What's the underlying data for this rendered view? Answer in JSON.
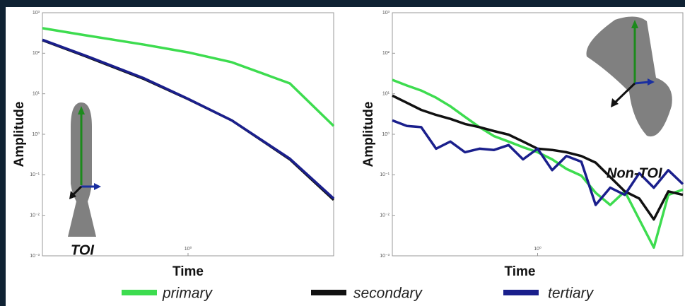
{
  "chart_data": [
    {
      "type": "line",
      "ylabel": "Amplitude",
      "xlabel": "Time",
      "annotation": "TOI",
      "log_x": true,
      "log_y": true,
      "x": [
        0.1,
        0.2,
        0.5,
        1,
        2,
        5,
        10
      ],
      "xlim": [
        0.1,
        10
      ],
      "xticks": [
        {
          "value": 1,
          "label": "10⁰"
        }
      ],
      "ylim": [
        0.001,
        1000
      ],
      "yticks": [
        {
          "value": 1000,
          "label": "10³"
        },
        {
          "value": 100,
          "label": "10²"
        },
        {
          "value": 10,
          "label": "10¹"
        },
        {
          "value": 1,
          "label": "10⁰"
        },
        {
          "value": 0.1,
          "label": "10⁻¹"
        },
        {
          "value": 0.01,
          "label": "10⁻²"
        },
        {
          "value": 0.001,
          "label": "10⁻³"
        }
      ],
      "series": [
        {
          "name": "primary",
          "color": "#3ddc4f",
          "values": [
            415,
            275,
            163,
            105,
            60,
            18,
            1.6
          ]
        },
        {
          "name": "secondary",
          "color": "#111111",
          "values": [
            210,
            83,
            23,
            7.4,
            2.2,
            0.24,
            0.024
          ]
        },
        {
          "name": "tertiary",
          "color": "#1a1f8c",
          "values": [
            215,
            86,
            24,
            7.5,
            2.2,
            0.25,
            0.026
          ]
        }
      ]
    },
    {
      "type": "line",
      "ylabel": "Amplitude",
      "xlabel": "Time",
      "annotation": "Non-TOI",
      "log_x": true,
      "log_y": true,
      "x": [
        0.1,
        0.126,
        0.158,
        0.2,
        0.251,
        0.316,
        0.398,
        0.501,
        0.631,
        0.794,
        1,
        1.26,
        1.58,
        2,
        2.51,
        3.16,
        3.98,
        5.01,
        6.31,
        7.94,
        10
      ],
      "xlim": [
        0.1,
        10
      ],
      "xticks": [
        {
          "value": 1,
          "label": "10⁰"
        }
      ],
      "ylim": [
        0.001,
        1000
      ],
      "yticks": [
        {
          "value": 1000,
          "label": "10³"
        },
        {
          "value": 100,
          "label": "10²"
        },
        {
          "value": 10,
          "label": "10¹"
        },
        {
          "value": 1,
          "label": "10⁰"
        },
        {
          "value": 0.1,
          "label": "10⁻¹"
        },
        {
          "value": 0.01,
          "label": "10⁻²"
        },
        {
          "value": 0.001,
          "label": "10⁻³"
        }
      ],
      "series": [
        {
          "color": "#3ddc4f",
          "values": [
            22,
            16,
            12,
            8,
            4.9,
            2.7,
            1.5,
            0.9,
            0.66,
            0.48,
            0.36,
            0.24,
            0.14,
            0.095,
            0.036,
            0.018,
            0.039,
            0.0079,
            0.0016,
            0.032,
            0.043
          ]
        },
        {
          "color": "#111111",
          "values": [
            9,
            6,
            4,
            3,
            2.4,
            1.8,
            1.5,
            1.2,
            0.98,
            0.66,
            0.44,
            0.41,
            0.36,
            0.29,
            0.2,
            0.088,
            0.039,
            0.026,
            0.0079,
            0.039,
            0.032
          ]
        },
        {
          "color": "#1a1f8c",
          "values": [
            2.2,
            1.6,
            1.5,
            0.44,
            0.66,
            0.36,
            0.44,
            0.41,
            0.54,
            0.24,
            0.44,
            0.13,
            0.29,
            0.21,
            0.018,
            0.048,
            0.032,
            0.11,
            0.048,
            0.13,
            0.059
          ]
        }
      ]
    }
  ]
}
